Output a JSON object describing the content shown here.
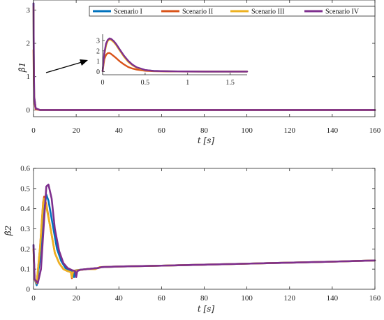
{
  "legend": {
    "entries": [
      {
        "label": "Scenario I",
        "color": "#0072BD"
      },
      {
        "label": "Scenario II",
        "color": "#D95319"
      },
      {
        "label": "Scenario III",
        "color": "#EDB120"
      },
      {
        "label": "Scenario IV",
        "color": "#7E2F8E"
      }
    ]
  },
  "chart_data": [
    {
      "type": "line",
      "panel": "top",
      "xlabel": "t [s]",
      "ylabel": "β̂1",
      "xlim": [
        0,
        160
      ],
      "ylim": [
        -0.2,
        3.3
      ],
      "xticks": [
        0,
        20,
        40,
        60,
        80,
        100,
        120,
        140,
        160
      ],
      "yticks": [
        0,
        1,
        2,
        3
      ],
      "series": [
        {
          "name": "Scenario I",
          "x": [
            0,
            0.1,
            0.3,
            1,
            3,
            160
          ],
          "y": [
            3.2,
            1.7,
            0.4,
            0.05,
            0.0,
            0.0
          ]
        },
        {
          "name": "Scenario II",
          "x": [
            0,
            0.1,
            0.3,
            1,
            3,
            160
          ],
          "y": [
            1.8,
            1.2,
            0.3,
            0.02,
            0.0,
            0.0
          ]
        },
        {
          "name": "Scenario III",
          "x": [
            0,
            0.1,
            0.3,
            1,
            3,
            160
          ],
          "y": [
            3.1,
            1.6,
            0.4,
            0.05,
            0.0,
            0.0
          ]
        },
        {
          "name": "Scenario IV",
          "x": [
            0,
            0.1,
            0.3,
            1,
            3,
            160
          ],
          "y": [
            3.2,
            1.8,
            0.4,
            0.05,
            0.0,
            0.0
          ]
        }
      ],
      "inset": {
        "xlim": [
          0,
          1.7
        ],
        "ylim": [
          -0.3,
          3.6
        ],
        "xticks": [
          0,
          0.5,
          1,
          1.5
        ],
        "yticks": [
          0,
          1,
          2,
          3
        ],
        "series": [
          {
            "name": "Scenario I",
            "x": [
              0,
              0.02,
              0.04,
              0.06,
              0.08,
              0.1,
              0.13,
              0.16,
              0.2,
              0.25,
              0.3,
              0.35,
              0.4,
              0.5,
              0.6,
              0.8,
              1.0,
              1.2,
              1.7
            ],
            "y": [
              0.05,
              1.7,
              2.6,
              3.0,
              3.15,
              3.1,
              2.9,
              2.6,
              2.1,
              1.5,
              1.0,
              0.65,
              0.4,
              0.15,
              0.07,
              0.03,
              0.02,
              0.01,
              0.01
            ]
          },
          {
            "name": "Scenario II",
            "x": [
              0,
              0.02,
              0.04,
              0.06,
              0.08,
              0.1,
              0.13,
              0.16,
              0.2,
              0.25,
              0.3,
              0.35,
              0.4,
              0.5,
              0.6,
              0.8,
              1.0,
              1.2,
              1.7
            ],
            "y": [
              0.05,
              1.2,
              1.6,
              1.78,
              1.8,
              1.7,
              1.5,
              1.3,
              1.0,
              0.7,
              0.45,
              0.3,
              0.2,
              0.08,
              0.04,
              0.02,
              0.01,
              0.01,
              0.01
            ]
          },
          {
            "name": "Scenario III",
            "x": [
              0,
              0.02,
              0.04,
              0.06,
              0.08,
              0.1,
              0.13,
              0.16,
              0.2,
              0.25,
              0.3,
              0.35,
              0.4,
              0.5,
              0.6,
              0.8,
              1.0,
              1.2,
              1.7
            ],
            "y": [
              0.05,
              1.6,
              2.5,
              2.95,
              3.1,
              3.05,
              2.85,
              2.55,
              2.05,
              1.45,
              0.95,
              0.62,
              0.38,
              0.14,
              0.06,
              0.03,
              0.02,
              0.01,
              0.01
            ]
          },
          {
            "name": "Scenario IV",
            "x": [
              0,
              0.02,
              0.04,
              0.06,
              0.08,
              0.1,
              0.13,
              0.16,
              0.2,
              0.25,
              0.3,
              0.35,
              0.4,
              0.5,
              0.6,
              0.8,
              1.0,
              1.2,
              1.7
            ],
            "y": [
              0.05,
              1.8,
              2.7,
              3.05,
              3.2,
              3.15,
              2.95,
              2.65,
              2.15,
              1.55,
              1.05,
              0.68,
              0.42,
              0.16,
              0.07,
              0.03,
              0.02,
              0.01,
              0.01
            ]
          }
        ]
      }
    },
    {
      "type": "line",
      "panel": "bottom",
      "xlabel": "t [s]",
      "ylabel": "β̂2",
      "xlim": [
        0,
        160
      ],
      "ylim": [
        0,
        0.6
      ],
      "xticks": [
        0,
        20,
        40,
        60,
        80,
        100,
        120,
        140,
        160
      ],
      "yticks": [
        0,
        0.1,
        0.2,
        0.3,
        0.4,
        0.5,
        0.6
      ],
      "series": [
        {
          "name": "Scenario I",
          "x": [
            0,
            0.5,
            1.5,
            3,
            4.5,
            6,
            7,
            9,
            11,
            13,
            15,
            17,
            18.5,
            19,
            19.5,
            20,
            22,
            25,
            30,
            32,
            40,
            60,
            80,
            100,
            120,
            140,
            160
          ],
          "y": [
            0.22,
            0.05,
            0.02,
            0.15,
            0.35,
            0.47,
            0.44,
            0.32,
            0.2,
            0.14,
            0.105,
            0.095,
            0.09,
            0.06,
            0.09,
            0.095,
            0.097,
            0.1,
            0.105,
            0.11,
            0.113,
            0.117,
            0.122,
            0.127,
            0.132,
            0.137,
            0.143
          ]
        },
        {
          "name": "Scenario II",
          "x": [
            0,
            0.5,
            1.5,
            3,
            4.5,
            5,
            6,
            8,
            10,
            12,
            14,
            16,
            17.5,
            18,
            18.5,
            19,
            21,
            25,
            30,
            32,
            40,
            60,
            80,
            100,
            120,
            140,
            160
          ],
          "y": [
            0.2,
            0.05,
            0.03,
            0.2,
            0.43,
            0.46,
            0.42,
            0.3,
            0.18,
            0.13,
            0.1,
            0.09,
            0.085,
            0.055,
            0.085,
            0.092,
            0.095,
            0.1,
            0.105,
            0.11,
            0.113,
            0.117,
            0.122,
            0.127,
            0.132,
            0.137,
            0.143
          ]
        },
        {
          "name": "Scenario III",
          "x": [
            0,
            0.5,
            1.5,
            3,
            4.5,
            5,
            6,
            8,
            10,
            12,
            14,
            16,
            17.5,
            18,
            18.5,
            19,
            21,
            25,
            29,
            31,
            40,
            60,
            80,
            100,
            120,
            140,
            160
          ],
          "y": [
            0.2,
            0.05,
            0.03,
            0.2,
            0.42,
            0.45,
            0.41,
            0.3,
            0.18,
            0.13,
            0.1,
            0.09,
            0.085,
            0.06,
            0.085,
            0.092,
            0.095,
            0.1,
            0.1,
            0.11,
            0.113,
            0.117,
            0.122,
            0.127,
            0.132,
            0.137,
            0.143
          ]
        },
        {
          "name": "Scenario IV",
          "x": [
            0,
            0.5,
            2,
            3.5,
            5,
            6,
            7,
            8.5,
            10,
            12,
            14,
            16,
            18,
            19.5,
            20,
            20.5,
            22,
            25,
            30,
            32,
            40,
            60,
            80,
            100,
            120,
            140,
            160
          ],
          "y": [
            0.22,
            0.05,
            0.03,
            0.1,
            0.35,
            0.51,
            0.52,
            0.45,
            0.3,
            0.19,
            0.13,
            0.105,
            0.095,
            0.09,
            0.06,
            0.09,
            0.097,
            0.1,
            0.105,
            0.11,
            0.113,
            0.117,
            0.122,
            0.127,
            0.132,
            0.137,
            0.143
          ]
        }
      ]
    }
  ]
}
